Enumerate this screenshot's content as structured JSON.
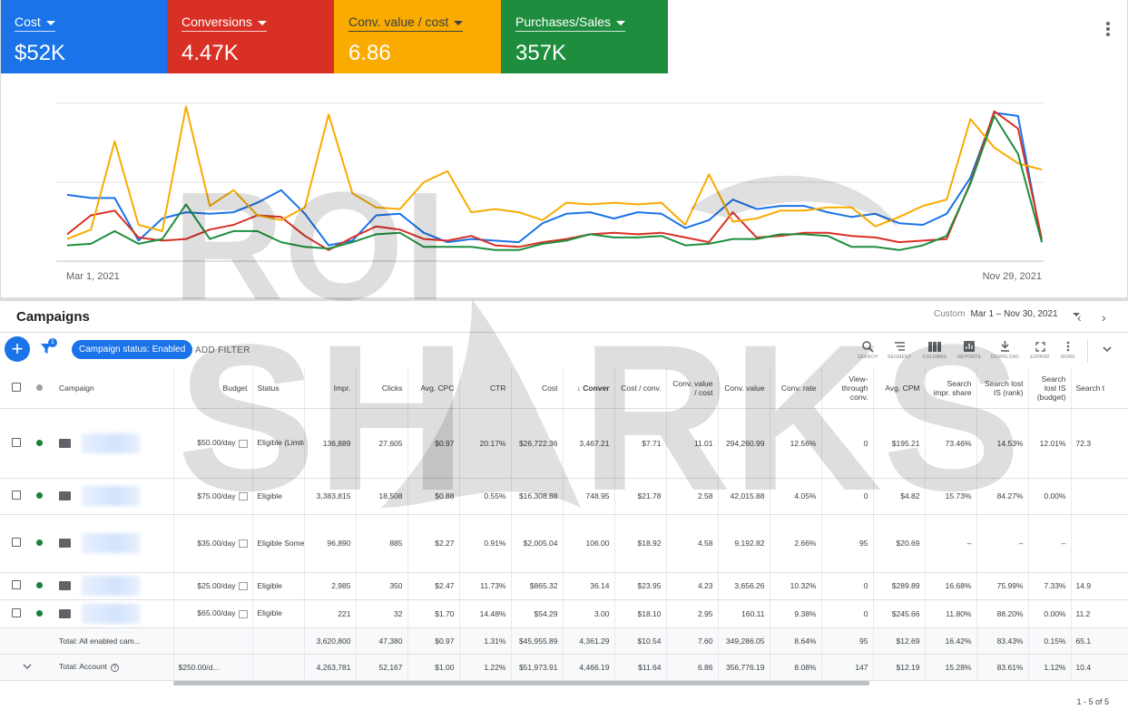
{
  "metrics": [
    {
      "label": "Cost",
      "value": "$52K",
      "color": "#1a73e8"
    },
    {
      "label": "Conversions",
      "value": "4.47K",
      "color": "#d93025"
    },
    {
      "label": "Conv. value / cost",
      "value": "6.86",
      "color": "#f9ab00"
    },
    {
      "label": "Purchases/Sales",
      "value": "357K",
      "color": "#1e8e3e"
    }
  ],
  "chart_data": {
    "type": "line",
    "x_start_label": "Mar 1, 2021",
    "x_end_label": "Nov 29, 2021",
    "grid": true,
    "series": [
      {
        "color": "#1a73e8",
        "values": [
          42,
          40,
          40,
          13,
          27,
          31,
          30,
          31,
          37,
          45,
          30,
          10,
          13,
          29,
          30,
          18,
          12,
          14,
          13,
          12,
          24,
          30,
          31,
          27,
          31,
          30,
          21,
          26,
          39,
          33,
          35,
          35,
          31,
          28,
          30,
          24,
          23,
          30,
          53,
          94,
          92,
          12
        ]
      },
      {
        "color": "#d93025",
        "values": [
          17,
          29,
          32,
          15,
          13,
          14,
          20,
          23,
          29,
          28,
          16,
          7,
          15,
          22,
          20,
          14,
          13,
          16,
          10,
          9,
          12,
          14,
          17,
          18,
          17,
          18,
          15,
          12,
          31,
          15,
          16,
          18,
          18,
          16,
          15,
          12,
          13,
          14,
          50,
          95,
          84,
          14
        ]
      },
      {
        "color": "#f9ab00",
        "values": [
          14,
          20,
          76,
          23,
          19,
          98,
          35,
          45,
          29,
          26,
          34,
          93,
          43,
          34,
          33,
          50,
          57,
          31,
          33,
          31,
          26,
          37,
          36,
          37,
          36,
          37,
          23,
          55,
          25,
          27,
          32,
          32,
          34,
          34,
          22,
          28,
          35,
          39,
          90,
          72,
          62,
          58
        ]
      },
      {
        "color": "#1e8e3e",
        "values": [
          10,
          11,
          19,
          11,
          14,
          36,
          14,
          19,
          19,
          12,
          9,
          8,
          12,
          17,
          18,
          9,
          9,
          9,
          7,
          7,
          11,
          13,
          17,
          15,
          15,
          16,
          10,
          11,
          14,
          14,
          17,
          17,
          16,
          9,
          9,
          7,
          10,
          16,
          49,
          92,
          68,
          12
        ]
      }
    ]
  },
  "campaigns": {
    "title": "Campaigns",
    "date_custom": "Custom",
    "date_range": "Mar 1 – Nov 30, 2021",
    "filter_badge": "1",
    "chip": "Campaign status: Enabled",
    "add_filter": "ADD FILTER",
    "toolbar": [
      "SEARCH",
      "SEGMENT",
      "COLUMNS",
      "REPORTS",
      "DOWNLOAD",
      "EXPAND",
      "MORE"
    ],
    "headers": [
      "Campaign",
      "Budget",
      "Status",
      "Impr.",
      "Clicks",
      "Avg. CPC",
      "CTR",
      "Cost",
      "Conver",
      "Cost / conv.",
      "Conv. value / cost",
      "Conv. value",
      "Conv. rate",
      "View-through conv.",
      "Avg. CPM",
      "Search impr. share",
      "Search lost IS (rank)",
      "Search lost IS (budget)",
      "Search t"
    ],
    "rows": [
      {
        "budget": "$50.00/day",
        "status": "Eligible (Limited: Limited by budget)",
        "cells": [
          "136,889",
          "27,605",
          "$0.97",
          "20.17%",
          "$26,722.36",
          "3,467.21",
          "$7.71",
          "11.01",
          "294,260.99",
          "12.56%",
          "0",
          "$195.21",
          "73.46%",
          "14.53%",
          "12.01%",
          "72.3"
        ]
      },
      {
        "budget": "$75.00/day",
        "status": "Eligible",
        "cells": [
          "3,383,815",
          "18,508",
          "$0.88",
          "0.55%",
          "$16,308.88",
          "748.95",
          "$21.78",
          "2.58",
          "42,015.88",
          "4.05%",
          "0",
          "$4.82",
          "15.73%",
          "84.27%",
          "0.00%",
          ""
        ]
      },
      {
        "budget": "$35.00/day",
        "status": "Eligible Some ads limited by policy",
        "cells": [
          "96,890",
          "885",
          "$2.27",
          "0.91%",
          "$2,005.04",
          "106.00",
          "$18.92",
          "4.58",
          "9,192.82",
          "2.66%",
          "95",
          "$20.69",
          "–",
          "–",
          "–",
          ""
        ]
      },
      {
        "budget": "$25.00/day",
        "status": "Eligible",
        "cells": [
          "2,985",
          "350",
          "$2.47",
          "11.73%",
          "$865.32",
          "36.14",
          "$23.95",
          "4.23",
          "3,656.26",
          "10.32%",
          "0",
          "$289.89",
          "16.68%",
          "75.99%",
          "7.33%",
          "14.9"
        ]
      },
      {
        "budget": "$65.00/day",
        "status": "Eligible",
        "cells": [
          "221",
          "32",
          "$1.70",
          "14.48%",
          "$54.29",
          "3.00",
          "$18.10",
          "2.95",
          "160.11",
          "9.38%",
          "0",
          "$245.66",
          "11.80%",
          "88.20%",
          "0.00%",
          "11.2"
        ]
      }
    ],
    "total_enabled": {
      "label": "Total: All enabled cam...",
      "cells": [
        "3,620,800",
        "47,380",
        "$0.97",
        "1.31%",
        "$45,955.89",
        "4,361.29",
        "$10.54",
        "7.60",
        "349,286.05",
        "8.64%",
        "95",
        "$12.69",
        "16.42%",
        "83.43%",
        "0.15%",
        "65.1"
      ]
    },
    "total_account": {
      "label": "Total: Account",
      "budget": "$250.00/d...",
      "cells": [
        "4,263,781",
        "52,167",
        "$1.00",
        "1.22%",
        "$51,973.91",
        "4,466.19",
        "$11.64",
        "6.86",
        "356,776.19",
        "8.08%",
        "147",
        "$12.19",
        "15.28%",
        "83.61%",
        "1.12%",
        "10.4"
      ]
    },
    "pager": "1 - 5 of 5"
  },
  "watermark": [
    "ROI",
    "SH",
    "RKS"
  ]
}
